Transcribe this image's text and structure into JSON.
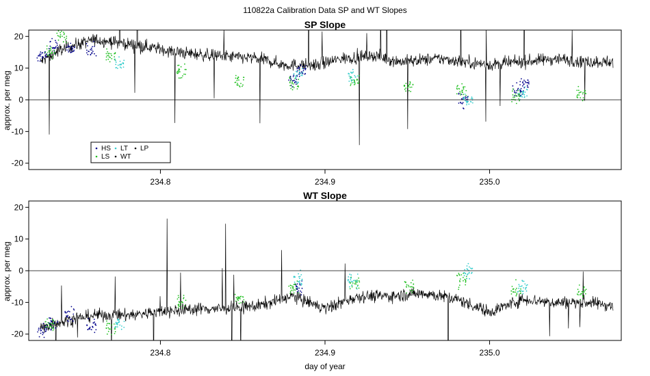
{
  "figure_title": "110822a   Calibration Data SP and WT Slopes",
  "colors": {
    "HS": "#00008b",
    "LS": "#22c022",
    "LT": "#33cccc",
    "WT": "#000000",
    "LP": "#000000"
  },
  "chart_data": [
    {
      "type": "line",
      "title": "SP Slope",
      "xlabel": "",
      "ylabel": "approx. per meg",
      "xlim": [
        234.72,
        235.08
      ],
      "ylim": [
        -22,
        22
      ],
      "x_ticks": [
        "234.8",
        "234.9",
        "235.0"
      ],
      "y_ticks": [
        "-20",
        "-10",
        "0",
        "10",
        "20"
      ],
      "hline": 0,
      "legend_position": "lower-left",
      "legend": [
        "HS",
        "LT",
        "LP",
        "LS",
        "WT"
      ],
      "series": [
        {
          "name": "WT",
          "x": [
            234.727,
            234.74,
            234.76,
            234.775,
            234.79,
            234.81,
            234.83,
            234.86,
            234.875,
            234.895,
            234.91,
            234.93,
            234.945,
            234.97,
            234.985,
            235.0,
            235.02,
            235.04,
            235.06,
            235.075
          ],
          "y": [
            12,
            16,
            19,
            18,
            17,
            15,
            14,
            13,
            11,
            11,
            13,
            14,
            12,
            13,
            12,
            11,
            12,
            13,
            12,
            12
          ]
        },
        {
          "name": "HS",
          "x": [
            234.728,
            234.735,
            234.745,
            234.758,
            234.881,
            234.886,
            234.984,
            235.017,
            235.021
          ],
          "y": [
            14,
            17,
            16,
            15,
            6,
            9,
            0,
            3,
            5
          ]
        },
        {
          "name": "LS",
          "x": [
            234.733,
            234.74,
            234.77,
            234.813,
            234.848,
            234.881,
            234.918,
            234.951,
            234.983,
            235.016,
            235.056
          ],
          "y": [
            15,
            20,
            14,
            9,
            6,
            5,
            6,
            4,
            3,
            1,
            2
          ]
        },
        {
          "name": "LT",
          "x": [
            234.775,
            234.884,
            234.917,
            234.987,
            235.02
          ],
          "y": [
            11,
            8,
            7,
            0,
            2
          ]
        }
      ]
    },
    {
      "type": "line",
      "title": "WT Slope",
      "xlabel": "day of year",
      "ylabel": "approx. per meg",
      "xlim": [
        234.72,
        235.08
      ],
      "ylim": [
        -22,
        22
      ],
      "x_ticks": [
        "234.8",
        "234.9",
        "235.0"
      ],
      "y_ticks": [
        "-20",
        "-10",
        "0",
        "10",
        "20"
      ],
      "hline": 0,
      "series": [
        {
          "name": "WT",
          "x": [
            234.727,
            234.74,
            234.76,
            234.78,
            234.8,
            234.82,
            234.84,
            234.86,
            234.88,
            234.9,
            234.92,
            234.94,
            234.96,
            234.98,
            235.0,
            235.02,
            235.04,
            235.06,
            235.075
          ],
          "y": [
            -18,
            -16,
            -14,
            -14,
            -13,
            -12,
            -12,
            -11,
            -8,
            -12,
            -8,
            -8,
            -7,
            -9,
            -13,
            -9,
            -10,
            -10,
            -11
          ]
        },
        {
          "name": "HS",
          "x": [
            234.728,
            234.735,
            234.745,
            234.758,
            234.884
          ],
          "y": [
            -19,
            -16,
            -14,
            -17,
            -5
          ]
        },
        {
          "name": "LS",
          "x": [
            234.733,
            234.77,
            234.813,
            234.848,
            234.881,
            234.918,
            234.951,
            234.983,
            235.016,
            235.056
          ],
          "y": [
            -17,
            -18,
            -10,
            -9,
            -6,
            -4,
            -5,
            -3,
            -6,
            -7
          ]
        },
        {
          "name": "LT",
          "x": [
            234.775,
            234.884,
            234.917,
            234.987,
            235.02
          ],
          "y": [
            -17,
            -3,
            -3,
            0,
            -5
          ]
        }
      ]
    }
  ]
}
